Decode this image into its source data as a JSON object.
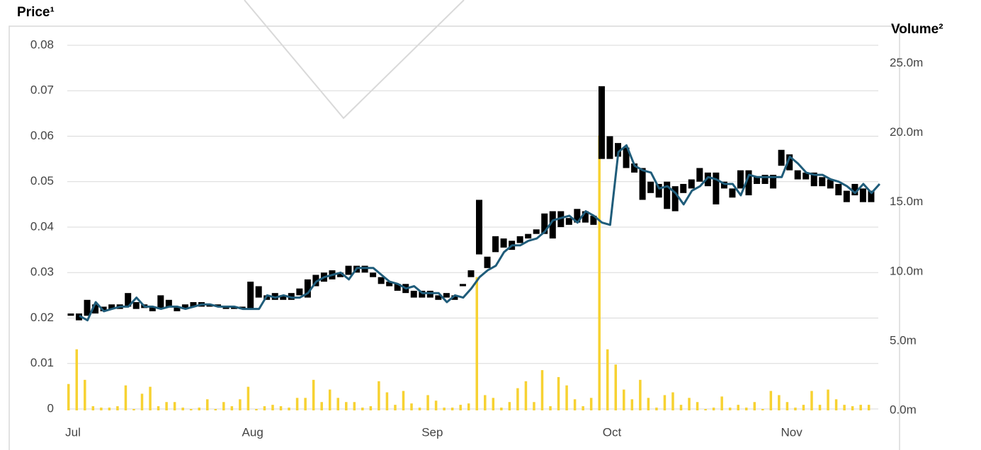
{
  "chart_data": {
    "type": "stock",
    "title": "Price¹",
    "y2_title": "Volume²",
    "categories": [
      "Jul",
      null,
      null,
      null,
      null,
      null,
      null,
      null,
      null,
      null,
      null,
      null,
      null,
      null,
      null,
      null,
      null,
      null,
      null,
      null,
      null,
      null,
      "Aug",
      null,
      null,
      null,
      null,
      null,
      null,
      null,
      null,
      null,
      null,
      null,
      null,
      null,
      null,
      null,
      null,
      null,
      null,
      null,
      null,
      null,
      "Sep",
      null,
      null,
      null,
      null,
      null,
      null,
      null,
      null,
      null,
      null,
      null,
      null,
      null,
      null,
      null,
      null,
      null,
      null,
      null,
      null,
      null,
      "Oct",
      null,
      null,
      null,
      null,
      null,
      null,
      null,
      null,
      null,
      null,
      null,
      null,
      null,
      null,
      null,
      null,
      null,
      null,
      null,
      null,
      null,
      "Nov",
      null,
      null,
      null,
      null,
      null,
      null,
      null,
      null,
      null,
      null
    ],
    "high": [
      0.021,
      0.021,
      0.024,
      0.023,
      0.0225,
      0.023,
      0.023,
      0.0255,
      0.0235,
      0.023,
      0.0225,
      0.025,
      0.024,
      0.0225,
      0.023,
      0.0235,
      0.0235,
      0.023,
      0.023,
      0.0225,
      0.0225,
      0.0225,
      0.028,
      0.027,
      0.025,
      0.0255,
      0.025,
      0.0255,
      0.0265,
      0.0285,
      0.0295,
      0.03,
      0.0305,
      0.03,
      0.0315,
      0.0315,
      0.0315,
      0.03,
      0.029,
      0.028,
      0.0275,
      0.0275,
      0.026,
      0.026,
      0.026,
      0.025,
      0.0255,
      0.025,
      0.0275,
      0.0305,
      0.046,
      0.0335,
      0.038,
      0.0375,
      0.037,
      0.038,
      0.0385,
      0.0395,
      0.043,
      0.0435,
      0.0435,
      0.042,
      0.044,
      0.0435,
      0.0425,
      0.071,
      0.06,
      0.0585,
      0.0575,
      0.054,
      0.053,
      0.05,
      0.0495,
      0.05,
      0.049,
      0.0495,
      0.0505,
      0.053,
      0.052,
      0.052,
      0.05,
      0.0485,
      0.0525,
      0.0525,
      0.051,
      0.0515,
      0.0515,
      0.057,
      0.056,
      0.0525,
      0.052,
      0.052,
      0.051,
      0.0505,
      0.0495,
      0.048,
      0.0495,
      0.0485,
      0.048
    ],
    "low": [
      0.0205,
      0.0195,
      0.0205,
      0.021,
      0.0215,
      0.022,
      0.022,
      0.0225,
      0.022,
      0.0222,
      0.0215,
      0.022,
      0.0225,
      0.0215,
      0.022,
      0.0225,
      0.0225,
      0.0225,
      0.0225,
      0.022,
      0.022,
      0.022,
      0.022,
      0.0245,
      0.024,
      0.024,
      0.024,
      0.024,
      0.025,
      0.0245,
      0.027,
      0.028,
      0.0285,
      0.029,
      0.0295,
      0.03,
      0.03,
      0.029,
      0.0275,
      0.027,
      0.026,
      0.0255,
      0.0245,
      0.0245,
      0.0245,
      0.024,
      0.0245,
      0.024,
      0.027,
      0.029,
      0.034,
      0.031,
      0.0345,
      0.0355,
      0.035,
      0.0365,
      0.0375,
      0.0385,
      0.0385,
      0.0375,
      0.04,
      0.0405,
      0.041,
      0.041,
      0.0405,
      0.055,
      0.055,
      0.0555,
      0.053,
      0.052,
      0.046,
      0.0475,
      0.0465,
      0.044,
      0.0435,
      0.0475,
      0.0485,
      0.05,
      0.049,
      0.045,
      0.0485,
      0.0465,
      0.0485,
      0.047,
      0.0495,
      0.0495,
      0.0485,
      0.0535,
      0.0525,
      0.0505,
      0.0505,
      0.049,
      0.049,
      0.0485,
      0.047,
      0.0455,
      0.047,
      0.0455,
      0.0455
    ],
    "close": [
      0.0205,
      0.0195,
      0.0235,
      0.0215,
      0.022,
      0.0225,
      0.0225,
      0.0245,
      0.0225,
      0.0225,
      0.022,
      0.0225,
      0.0225,
      0.022,
      0.0225,
      0.023,
      0.023,
      0.0225,
      0.0225,
      0.0225,
      0.022,
      0.022,
      0.022,
      0.025,
      0.0245,
      0.025,
      0.0245,
      0.0245,
      0.0255,
      0.028,
      0.029,
      0.0295,
      0.03,
      0.0285,
      0.031,
      0.031,
      0.031,
      0.0295,
      0.028,
      0.0275,
      0.0265,
      0.027,
      0.0255,
      0.0255,
      0.0255,
      0.0235,
      0.025,
      0.0245,
      0.0265,
      0.029,
      0.0305,
      0.0315,
      0.0345,
      0.036,
      0.036,
      0.037,
      0.0375,
      0.039,
      0.0415,
      0.042,
      0.0425,
      0.041,
      0.0435,
      0.0425,
      0.041,
      0.0405,
      0.0565,
      0.058,
      0.0535,
      0.0525,
      0.052,
      0.0485,
      0.049,
      0.0475,
      0.045,
      0.048,
      0.049,
      0.051,
      0.0505,
      0.0495,
      0.0495,
      0.047,
      0.0515,
      0.051,
      0.051,
      0.051,
      0.051,
      0.0555,
      0.054,
      0.052,
      0.0515,
      0.0515,
      0.0505,
      0.05,
      0.049,
      0.0475,
      0.0495,
      0.0475,
      0.0495
    ],
    "volume": [
      1.9,
      4.4,
      2.2,
      0.3,
      0.2,
      0.2,
      0.3,
      1.8,
      0.1,
      1.2,
      1.7,
      0.3,
      0.6,
      0.6,
      0.2,
      0.1,
      0.2,
      0.8,
      0.1,
      0.6,
      0.3,
      0.8,
      1.7,
      0.1,
      0.3,
      0.4,
      0.3,
      0.2,
      0.9,
      0.9,
      2.2,
      0.6,
      1.5,
      0.9,
      0.6,
      0.6,
      0.2,
      0.3,
      2.1,
      1.3,
      0.4,
      1.4,
      0.5,
      0.2,
      1.1,
      0.7,
      0.2,
      0.2,
      0.4,
      0.5,
      9.6,
      1.1,
      0.9,
      0.2,
      0.6,
      1.6,
      2.1,
      0.6,
      2.9,
      0.3,
      2.4,
      1.8,
      0.8,
      0.3,
      0.9,
      19.8,
      4.4,
      3.3,
      1.5,
      0.8,
      2.2,
      0.9,
      0.2,
      1.1,
      1.3,
      0.4,
      0.9,
      0.6,
      0.1,
      0.2,
      1.0,
      0.2,
      0.4,
      0.2,
      0.6,
      0.1,
      1.4,
      1.1,
      0.6,
      0.2,
      0.4,
      1.4,
      0.4,
      1.5,
      0.8,
      0.4,
      0.3,
      0.4,
      0.4
    ],
    "bar_color": "#000000",
    "line_color": "#1f5c7a",
    "volume_color": "#f7d232",
    "ylim": [
      0,
      0.08
    ],
    "yticks": [
      0,
      0.01,
      0.02,
      0.03,
      0.04,
      0.05,
      0.06,
      0.07,
      0.08
    ],
    "y2lim": [
      0,
      26.3
    ],
    "y2ticks": [
      {
        "value": 0,
        "label": "0.0m"
      },
      {
        "value": 5,
        "label": "5.0m"
      },
      {
        "value": 10,
        "label": "10.0m"
      },
      {
        "value": 15,
        "label": "15.0m"
      },
      {
        "value": 20,
        "label": "20.0m"
      },
      {
        "value": 25,
        "label": "25.0m"
      }
    ],
    "grid": true
  }
}
